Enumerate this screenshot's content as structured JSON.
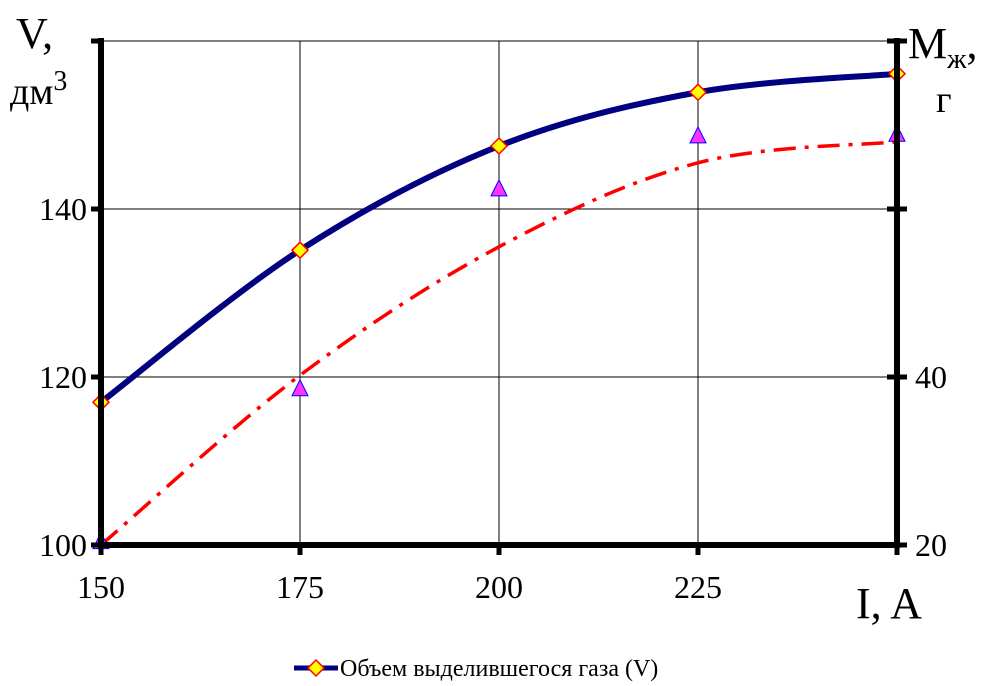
{
  "chart_data": {
    "type": "line",
    "title": "",
    "x": [
      150,
      175,
      200,
      225,
      250
    ],
    "x_tick_labels": [
      "150",
      "175",
      "200",
      "225"
    ],
    "xlim": [
      150,
      250
    ],
    "xlabel": "I, A",
    "y_left": {
      "label_line1": "V,",
      "label_line2": "дм",
      "label_sup": "3",
      "ylim": [
        100,
        160
      ],
      "ticks": [
        100,
        120,
        140
      ],
      "tick_labels": [
        "100",
        "120",
        "140"
      ]
    },
    "y_right": {
      "label_line1": "M",
      "label_sub": "ж",
      "label_suffix": ",",
      "label_line2": "г",
      "ylim": [
        20,
        80
      ],
      "ticks": [
        20,
        40
      ],
      "tick_labels": [
        "20",
        "40"
      ]
    },
    "grid": true,
    "legend_position": "bottom-center",
    "series": [
      {
        "name": "Объем выделившегося газа (V)",
        "axis": "left",
        "color": "#000080",
        "marker_color": "#FFFF00",
        "marker_edge": "#FF0000",
        "marker": "diamond",
        "line_style": "solid",
        "values": [
          117,
          135.1,
          147.5,
          153.9,
          156.1
        ]
      },
      {
        "axis": "right",
        "color": "#FF0000",
        "marker_color": "#FF33FF",
        "marker_edge": "#0000FF",
        "marker": "triangle",
        "line_style": "dash-dot",
        "values": [
          20.4,
          38.6,
          62.4,
          68.7,
          68.9
        ],
        "fit_values": [
          20,
          40.2,
          55.5,
          65.5,
          68.0
        ]
      }
    ]
  }
}
